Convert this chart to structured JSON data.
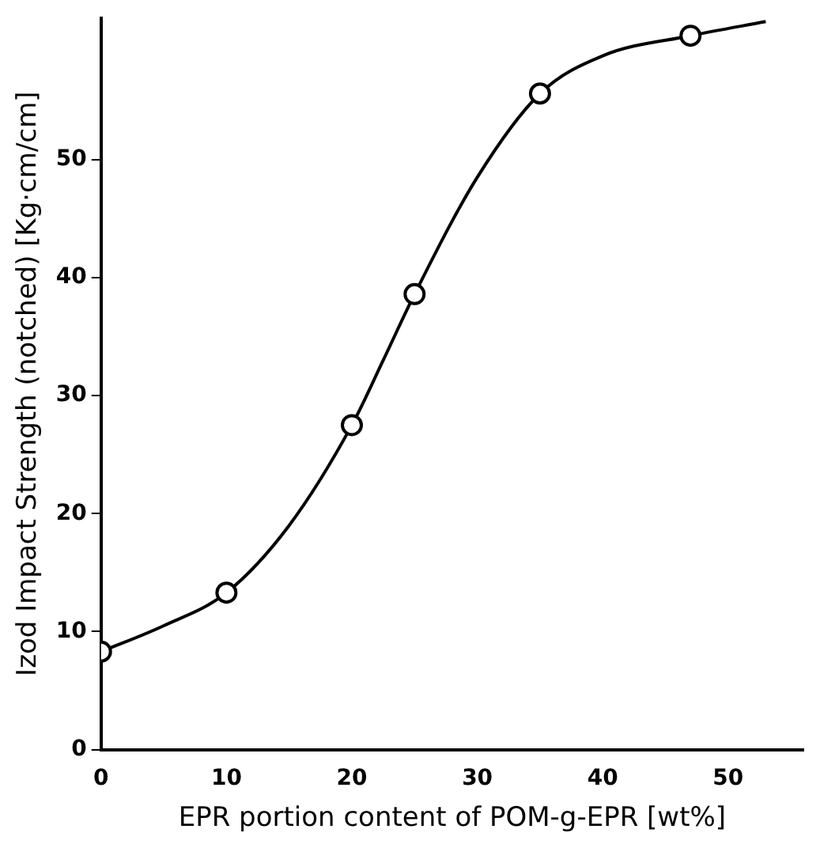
{
  "chart_data": {
    "type": "scatter",
    "xlabel": "EPR portion content of POM-g-EPR [wt%]",
    "ylabel": "Izod Impact Strength (notched) [Kg·cm/cm]",
    "xlim": [
      0,
      56
    ],
    "xticks": [
      0,
      10,
      20,
      30,
      40,
      50
    ],
    "ylim": [
      0,
      62
    ],
    "yticks": [
      0,
      10,
      20,
      30,
      40,
      50
    ],
    "grid": false,
    "legend": false,
    "series": [
      {
        "type": "line",
        "color": "#000000",
        "marker": "none",
        "x": [
          0,
          5,
          10,
          15,
          20,
          22.5,
          25,
          30,
          35,
          40,
          47,
          53
        ],
        "values": [
          8.3,
          10.5,
          13.3,
          19,
          27.5,
          33,
          38.6,
          48.5,
          55.6,
          58.8,
          60.5,
          61.7
        ]
      },
      {
        "color": "#000000",
        "marker": "circle",
        "x": [
          0,
          10,
          20,
          25,
          35,
          47
        ],
        "values": [
          8.3,
          13.3,
          27.5,
          38.6,
          55.6,
          60.5
        ]
      }
    ]
  }
}
